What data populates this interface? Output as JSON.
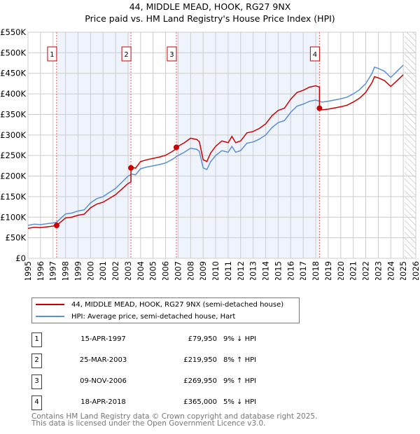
{
  "header": {
    "title": "44, MIDDLE MEAD, HOOK, RG27 9NX",
    "subtitle": "Price paid vs. HM Land Registry's House Price Index (HPI)"
  },
  "chart_data": {
    "type": "line",
    "title": "44, MIDDLE MEAD, HOOK, RG27 9NX",
    "subtitle": "Price paid vs. HM Land Registry's House Price Index (HPI)",
    "xlim": [
      1995,
      2026
    ],
    "ylim": [
      0,
      550000
    ],
    "yticks": [
      {
        "v": 0,
        "label": "£0"
      },
      {
        "v": 50000,
        "label": "£50K"
      },
      {
        "v": 100000,
        "label": "£100K"
      },
      {
        "v": 150000,
        "label": "£150K"
      },
      {
        "v": 200000,
        "label": "£200K"
      },
      {
        "v": 250000,
        "label": "£250K"
      },
      {
        "v": 300000,
        "label": "£300K"
      },
      {
        "v": 350000,
        "label": "£350K"
      },
      {
        "v": 400000,
        "label": "£400K"
      },
      {
        "v": 450000,
        "label": "£450K"
      },
      {
        "v": 500000,
        "label": "£500K"
      },
      {
        "v": 550000,
        "label": "£550K"
      }
    ],
    "xticks": [
      "1995",
      "1996",
      "1997",
      "1998",
      "1999",
      "2000",
      "2001",
      "2002",
      "2003",
      "2004",
      "2005",
      "2006",
      "2007",
      "2008",
      "2009",
      "2010",
      "2011",
      "2012",
      "2013",
      "2014",
      "2015",
      "2016",
      "2017",
      "2018",
      "2019",
      "2020",
      "2021",
      "2022",
      "2023",
      "2024",
      "2025",
      "2026"
    ],
    "grid": true,
    "forecast_hatch_from": 2025.1,
    "series": [
      {
        "name": "HPI: Average price, semi-detached house, Hart",
        "color": "#5b8fd6",
        "x": [
          1995,
          1995.5,
          1996,
          1996.5,
          1997,
          1997.3,
          1998,
          1998.5,
          1999,
          1999.5,
          2000,
          2000.5,
          2001,
          2001.5,
          2002,
          2002.5,
          2003,
          2003.3,
          2003.6,
          2004,
          2004.5,
          2005,
          2005.5,
          2006,
          2006.5,
          2007,
          2007.5,
          2008,
          2008.5,
          2008.7,
          2009,
          2009.3,
          2009.6,
          2010,
          2010.5,
          2011,
          2011.3,
          2011.6,
          2012,
          2012.5,
          2013,
          2013.5,
          2014,
          2014.5,
          2015,
          2015.5,
          2016,
          2016.5,
          2017,
          2017.5,
          2018,
          2018.3,
          2018.5,
          2019,
          2019.5,
          2020,
          2020.5,
          2021,
          2021.5,
          2022,
          2022.5,
          2022.7,
          2023,
          2023.5,
          2024,
          2024.5,
          2025
        ],
        "y": [
          80000,
          83000,
          82000,
          84000,
          86000,
          88000,
          108000,
          110000,
          115000,
          118000,
          135000,
          145000,
          150000,
          160000,
          170000,
          185000,
          200000,
          205000,
          203000,
          218000,
          222000,
          225000,
          228000,
          232000,
          240000,
          250000,
          258000,
          268000,
          265000,
          260000,
          220000,
          216000,
          235000,
          250000,
          262000,
          258000,
          272000,
          258000,
          262000,
          280000,
          283000,
          290000,
          300000,
          318000,
          330000,
          335000,
          355000,
          370000,
          375000,
          382000,
          385000,
          382000,
          380000,
          382000,
          385000,
          388000,
          392000,
          400000,
          410000,
          425000,
          450000,
          465000,
          462000,
          455000,
          440000,
          455000,
          470000
        ]
      },
      {
        "name": "44, MIDDLE MEAD, HOOK, RG27 9NX (semi-detached house)",
        "color": "#cc0000",
        "derived_ratio_segments": [
          {
            "from": 1995,
            "ratio": 0.91
          },
          {
            "from": 2003.23,
            "ratio": 1.08
          },
          {
            "from": 2006.86,
            "ratio": 1.09
          },
          {
            "from": 2018.3,
            "ratio": 0.95
          }
        ]
      }
    ],
    "sales": [
      {
        "n": "1",
        "x": 1997.29,
        "date": "15-APR-1997",
        "price": 79950,
        "price_label": "£79,950",
        "hpi": "9% ↓ HPI"
      },
      {
        "n": "2",
        "x": 2003.23,
        "date": "25-MAR-2003",
        "price": 219950,
        "price_label": "£219,950",
        "hpi": "8% ↑ HPI"
      },
      {
        "n": "3",
        "x": 2006.86,
        "date": "09-NOV-2006",
        "price": 269950,
        "price_label": "£269,950",
        "hpi": "9% ↑ HPI"
      },
      {
        "n": "4",
        "x": 2018.3,
        "date": "18-APR-2018",
        "price": 365000,
        "price_label": "£365,000",
        "hpi": "5% ↓ HPI"
      }
    ]
  },
  "legend": {
    "property": "44, MIDDLE MEAD, HOOK, RG27 9NX (semi-detached house)",
    "hpi": "HPI: Average price, semi-detached house, Hart"
  },
  "footer": {
    "line1": "Contains HM Land Registry data © Crown copyright and database right 2025.",
    "line2": "This data is licensed under the Open Government Licence v3.0."
  }
}
